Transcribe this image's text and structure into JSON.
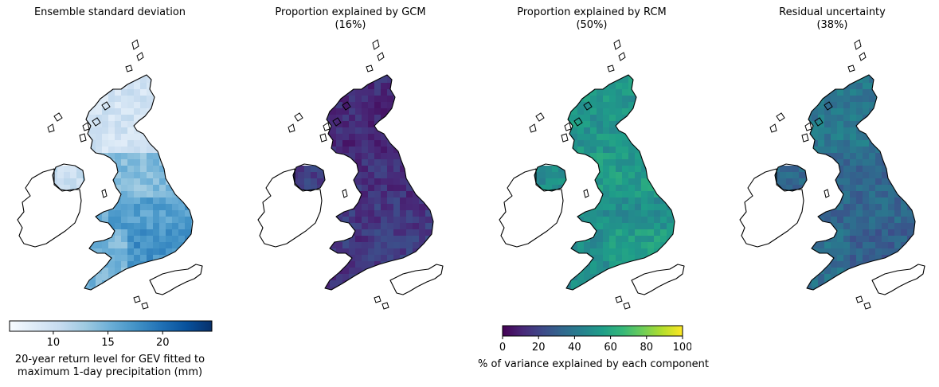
{
  "chart_data": [
    {
      "type": "heatmap",
      "title": "Ensemble standard deviation",
      "subtitle": "",
      "colormap": "Blues",
      "colorbar": {
        "label": "20-year return level for GEV fitted to maximum 1-day precipitation (mm)",
        "ticks": [
          "10",
          "15",
          "20"
        ],
        "range": [
          6,
          24.5
        ]
      },
      "region_values": {
        "Scotland": 9.5,
        "Northern Ireland": 10.5,
        "Northern England": 14,
        "Wales": 15,
        "Midlands": 16.5,
        "South East England": 17.5,
        "South West England": 14.5
      }
    },
    {
      "type": "heatmap",
      "title": "Proportion explained by GCM",
      "subtitle": "(16%)",
      "colormap": "viridis",
      "region_values": {
        "Scotland": 12,
        "Northern Ireland": 18,
        "Northern England": 14,
        "Wales": 17,
        "Midlands": 16,
        "South East England": 18,
        "South West England": 15
      }
    },
    {
      "type": "heatmap",
      "title": "Proportion explained by RCM",
      "subtitle": "(50%)",
      "colormap": "viridis",
      "colorbar": {
        "label": "% of variance explained by each component",
        "ticks": [
          "0",
          "20",
          "40",
          "60",
          "80",
          "100"
        ],
        "range": [
          0,
          100
        ]
      },
      "region_values": {
        "Scotland": 52,
        "Northern Ireland": 48,
        "Northern England": 55,
        "Wales": 50,
        "Midlands": 50,
        "South East England": 55,
        "South West England": 48
      }
    },
    {
      "type": "heatmap",
      "title": "Residual uncertainty",
      "subtitle": "(38%)",
      "colormap": "viridis",
      "region_values": {
        "Scotland": 40,
        "Northern Ireland": 35,
        "Northern England": 33,
        "Wales": 36,
        "Midlands": 33,
        "South East England": 30,
        "South West England": 37
      }
    }
  ]
}
